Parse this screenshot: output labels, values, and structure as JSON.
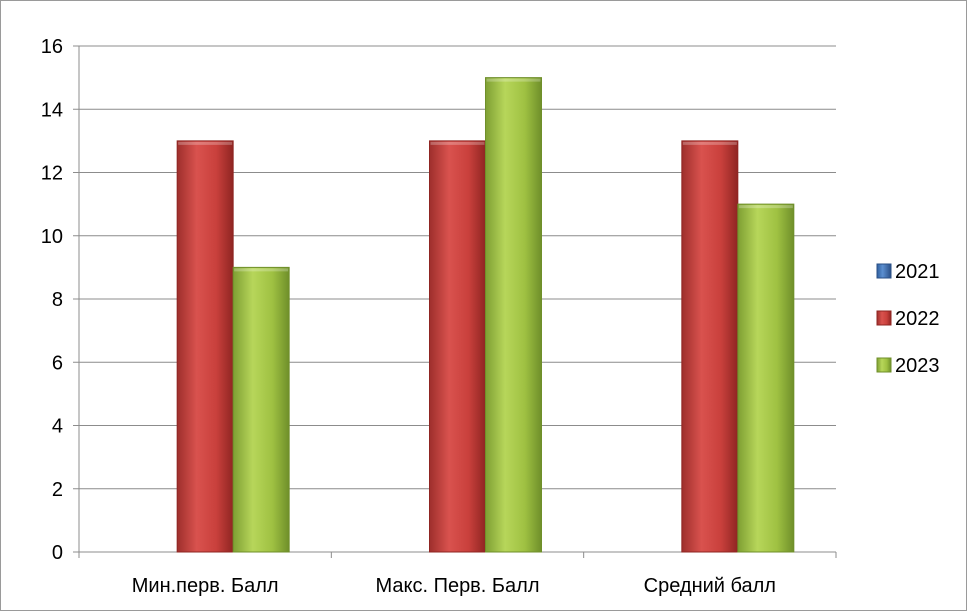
{
  "chart_data": {
    "type": "bar",
    "categories": [
      "Мин.перв. Балл",
      "Макс. Перв. Балл",
      "Средний балл"
    ],
    "series": [
      {
        "name": "2021",
        "values": [
          0,
          0,
          0
        ],
        "color": "#4f81bd"
      },
      {
        "name": "2022",
        "values": [
          13,
          13,
          13
        ],
        "color": "#c0504d"
      },
      {
        "name": "2023",
        "values": [
          9,
          15,
          11
        ],
        "color": "#9bbb59"
      }
    ],
    "title": "",
    "xlabel": "",
    "ylabel": "",
    "ylim": [
      0,
      16
    ],
    "yticks": [
      "0",
      "2",
      "4",
      "6",
      "8",
      "10",
      "12",
      "14",
      "16"
    ],
    "grid": true,
    "legend_position": "right"
  }
}
